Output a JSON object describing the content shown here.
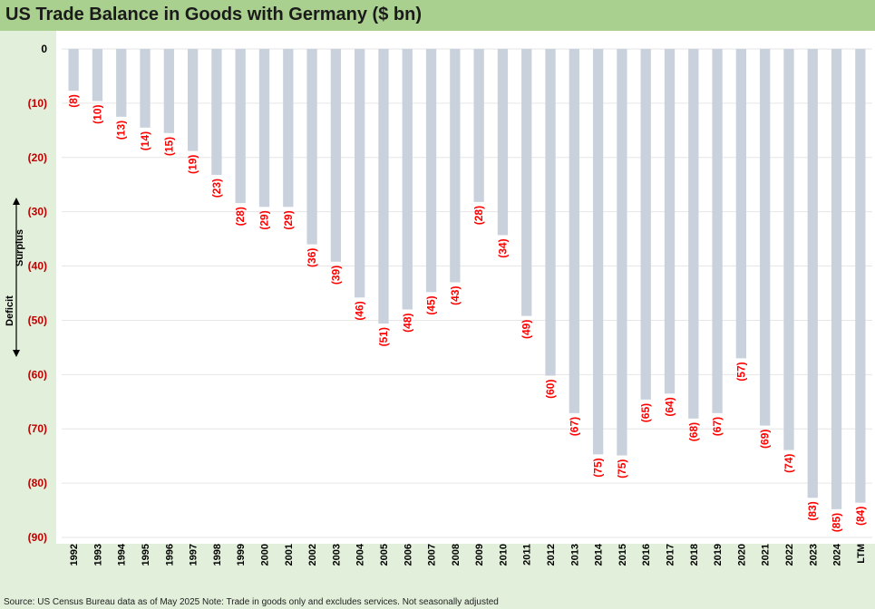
{
  "title": "US Trade Balance in Goods with Germany ($ bn)",
  "side_labels": {
    "top": "Surplus",
    "bottom": "Deficit"
  },
  "source": "Source: US Census Bureau data as of May 2025 Note: Trade in goods only and excludes services. Not seasonally adjusted",
  "colors": {
    "bar": "#c9d2dc",
    "label": "#ff0000",
    "title_bar": "#a9d08e",
    "background": "#e2efda",
    "axis_label": "#c00000"
  },
  "chart_data": {
    "type": "bar",
    "categories": [
      "1992",
      "1993",
      "1994",
      "1995",
      "1996",
      "1997",
      "1998",
      "1999",
      "2000",
      "2001",
      "2002",
      "2003",
      "2004",
      "2005",
      "2006",
      "2007",
      "2008",
      "2009",
      "2010",
      "2011",
      "2012",
      "2013",
      "2014",
      "2015",
      "2016",
      "2017",
      "2018",
      "2019",
      "2020",
      "2021",
      "2022",
      "2023",
      "2024",
      "LTM"
    ],
    "values": [
      -7.7,
      -9.6,
      -12.5,
      -14.5,
      -15.5,
      -18.8,
      -23.2,
      -28.4,
      -29.1,
      -29.1,
      -36.0,
      -39.2,
      -45.8,
      -50.6,
      -48.0,
      -44.8,
      -43.0,
      -28.2,
      -34.3,
      -49.2,
      -60.2,
      -67.1,
      -74.7,
      -74.9,
      -64.6,
      -63.5,
      -68.1,
      -67.1,
      -57.0,
      -69.4,
      -73.9,
      -82.7,
      -84.8,
      -83.6
    ],
    "data_labels": [
      "(8)",
      "(10)",
      "(13)",
      "(14)",
      "(15)",
      "(19)",
      "(23)",
      "(28)",
      "(29)",
      "(29)",
      "(36)",
      "(39)",
      "(46)",
      "(51)",
      "(48)",
      "(45)",
      "(43)",
      "(28)",
      "(34)",
      "(49)",
      "(60)",
      "(67)",
      "(75)",
      "(75)",
      "(65)",
      "(64)",
      "(68)",
      "(67)",
      "(57)",
      "(69)",
      "(74)",
      "(83)",
      "(85)",
      "(84)"
    ],
    "yticks": [
      0,
      -10,
      -20,
      -30,
      -40,
      -50,
      -60,
      -70,
      -80,
      -90
    ],
    "ytick_labels": [
      "0",
      "(10)",
      "(20)",
      "(30)",
      "(40)",
      "(50)",
      "(60)",
      "(70)",
      "(80)",
      "(90)"
    ],
    "ylim": [
      -90,
      0
    ],
    "grid": true,
    "legend": "none"
  }
}
